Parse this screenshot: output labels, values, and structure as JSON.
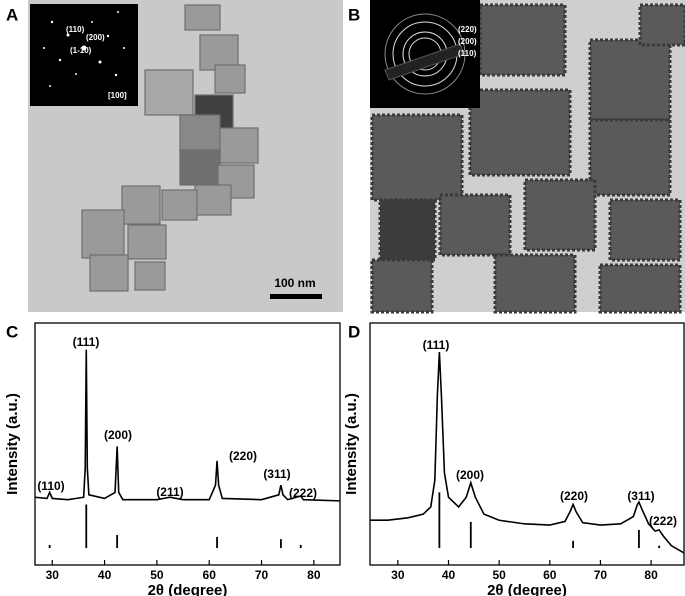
{
  "panels": [
    {
      "label": "A",
      "inset_labels": [
        "(110)",
        "(200)",
        "(1-10)",
        "[100]"
      ],
      "scale_bar": "100 nm"
    },
    {
      "label": "B",
      "inset_labels": [
        "(220)",
        "(200)",
        "(110)"
      ]
    }
  ],
  "chart_data": [
    {
      "type": "line",
      "panel_label": "C",
      "xlabel": "2θ (degree)",
      "ylabel": "Intensity (a.u.)",
      "xlim": [
        26.7,
        85
      ],
      "xticks": [
        30,
        40,
        50,
        60,
        70,
        80
      ],
      "ylim": [
        0,
        100
      ],
      "color": "#000000",
      "x": [
        26.7,
        29,
        29.5,
        30,
        33,
        36,
        36.3,
        36.5,
        36.7,
        37,
        40,
        42,
        42.4,
        42.7,
        43.5,
        50,
        52.5,
        55,
        60,
        61.2,
        61.5,
        61.8,
        62.5,
        70,
        73.3,
        73.7,
        74.1,
        75,
        77.5,
        78,
        85
      ],
      "values": [
        28,
        27.5,
        30,
        27.5,
        27,
        28,
        40,
        89,
        40,
        29,
        27.5,
        30,
        49,
        30,
        27,
        27,
        28,
        27,
        27,
        33,
        43,
        33,
        27.5,
        27,
        29,
        33,
        29,
        27,
        28.5,
        27,
        26.5
      ],
      "reference": {
        "base": 7,
        "x": [
          29.5,
          36.5,
          42.4,
          61.5,
          73.7,
          77.5
        ],
        "values": [
          8.3,
          25,
          12.4,
          11.6,
          10.7,
          8.3
        ]
      },
      "peak_labels": [
        "(110)",
        "(111)",
        "(200)",
        "(211)",
        "(220)",
        "(311)",
        "(222)"
      ]
    },
    {
      "type": "line",
      "panel_label": "D",
      "xlabel": "2θ (degree)",
      "ylabel": "Intensity (a.u.)",
      "xlim": [
        24.5,
        86.5
      ],
      "xticks": [
        30,
        40,
        50,
        60,
        70,
        80
      ],
      "ylim": [
        0,
        100
      ],
      "color": "#000000",
      "x": [
        24.5,
        28,
        32,
        35,
        36.5,
        37.3,
        37.8,
        38.2,
        38.6,
        39.2,
        40,
        42,
        43.5,
        44.4,
        45.3,
        47,
        50,
        55,
        60,
        63,
        64,
        64.6,
        65.2,
        66.5,
        70,
        74,
        76.5,
        77.3,
        77.6,
        78.2,
        79.5,
        80.8,
        81.6,
        82.4,
        84,
        86.5
      ],
      "values": [
        18.5,
        18.5,
        19.5,
        21,
        24,
        35,
        70,
        88,
        70,
        38,
        28,
        24,
        28,
        34,
        28,
        21,
        18.5,
        17,
        16.5,
        18,
        22,
        25,
        22,
        17.5,
        16.5,
        17,
        20,
        25,
        26,
        23,
        17,
        14,
        14.5,
        12,
        8,
        5
      ],
      "reference": {
        "base": 7,
        "x": [
          38.2,
          44.4,
          64.6,
          77.6,
          81.6
        ],
        "values": [
          30,
          17.8,
          10,
          14.5,
          8
        ]
      },
      "peak_labels": [
        "(111)",
        "(200)",
        "(220)",
        "(311)",
        "(222)"
      ]
    }
  ]
}
